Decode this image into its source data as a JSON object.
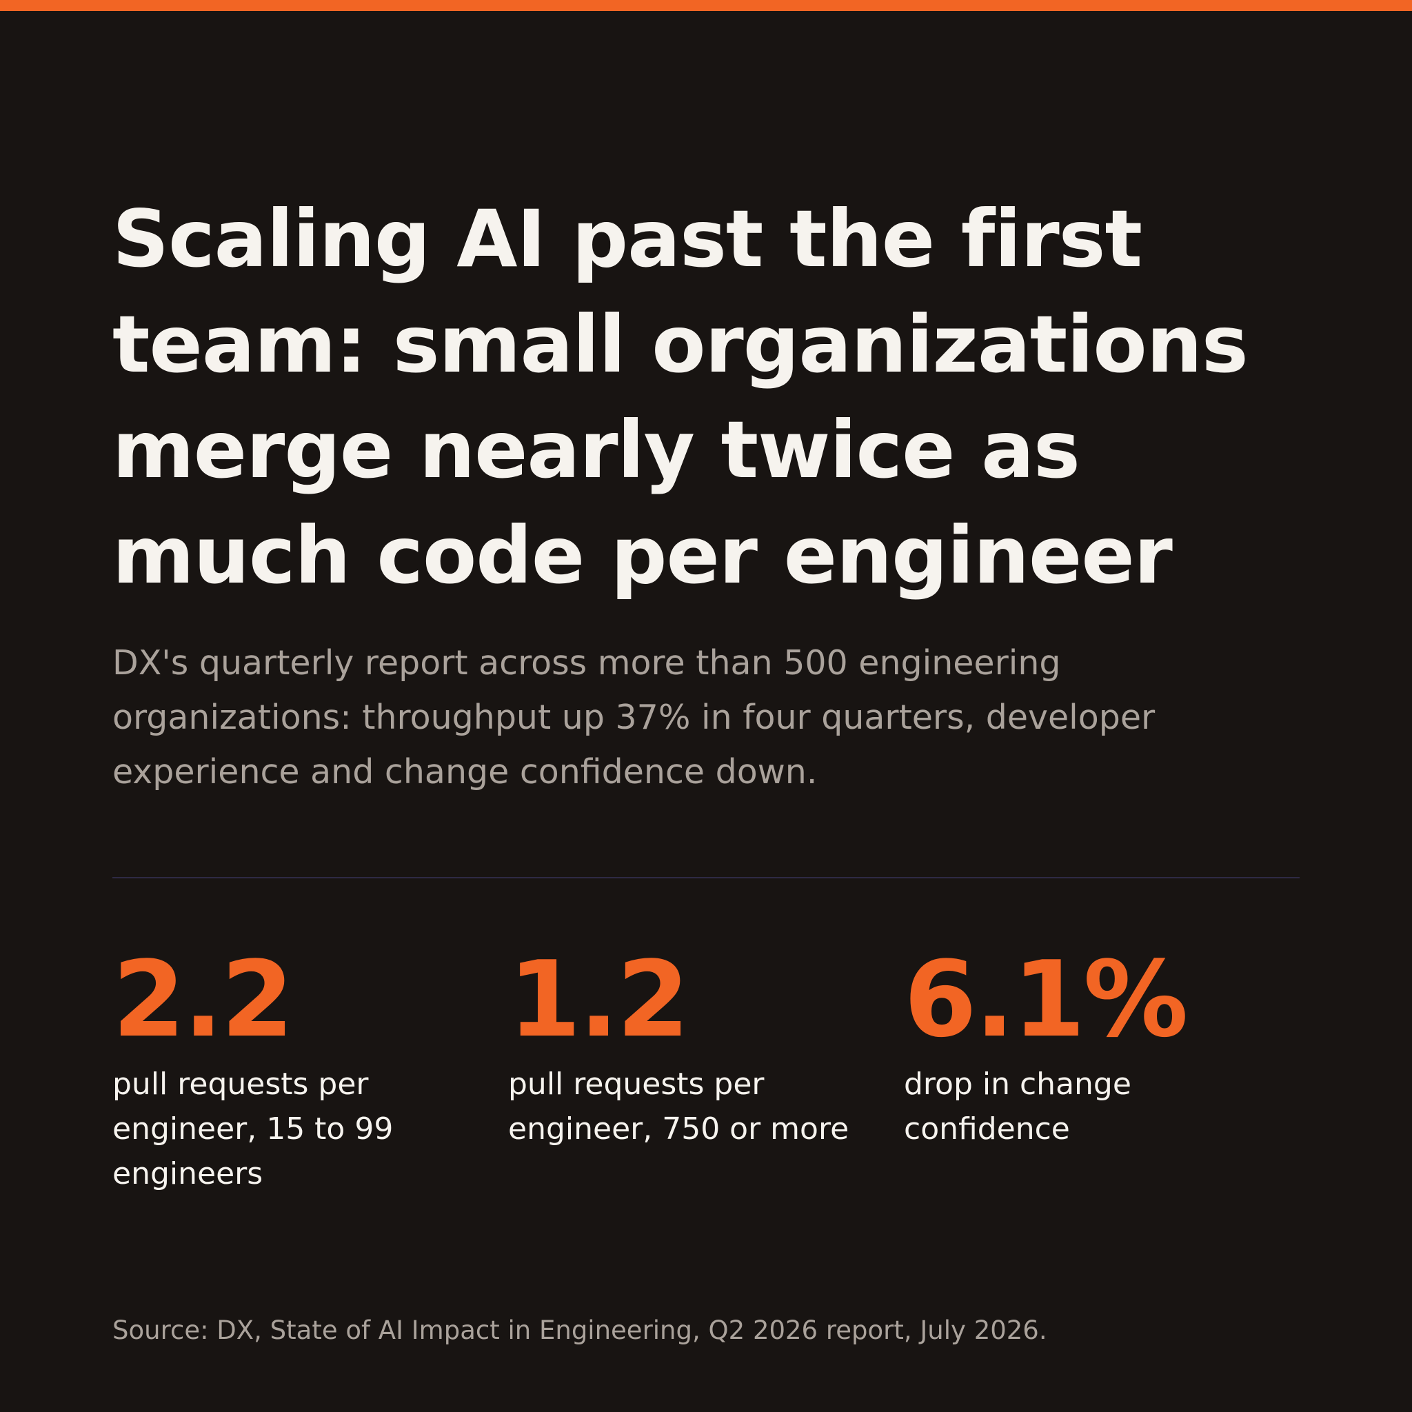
{
  "colors": {
    "background": "#181412",
    "accent": "#f26524",
    "headline_text": "#f6f3ee",
    "muted_text": "#aaa29b",
    "divider": "#2e2a44"
  },
  "header": {
    "title": "Scaling AI past the first team: small organizations merge nearly twice as much code per engineer",
    "subtitle": "DX's quarterly report across more than 500 engineering organizations: throughput up 37% in four quarters, developer experience and change confidence down."
  },
  "stats": [
    {
      "value": "2.2",
      "label": "pull requests per engineer, 15 to 99 engineers"
    },
    {
      "value": "1.2",
      "label": "pull requests per engineer, 750 or more"
    },
    {
      "value": "6.1%",
      "label": "drop in change confidence"
    }
  ],
  "footer": {
    "source": "Source: DX, State of AI Impact in Engineering, Q2 2026 report, July 2026."
  }
}
